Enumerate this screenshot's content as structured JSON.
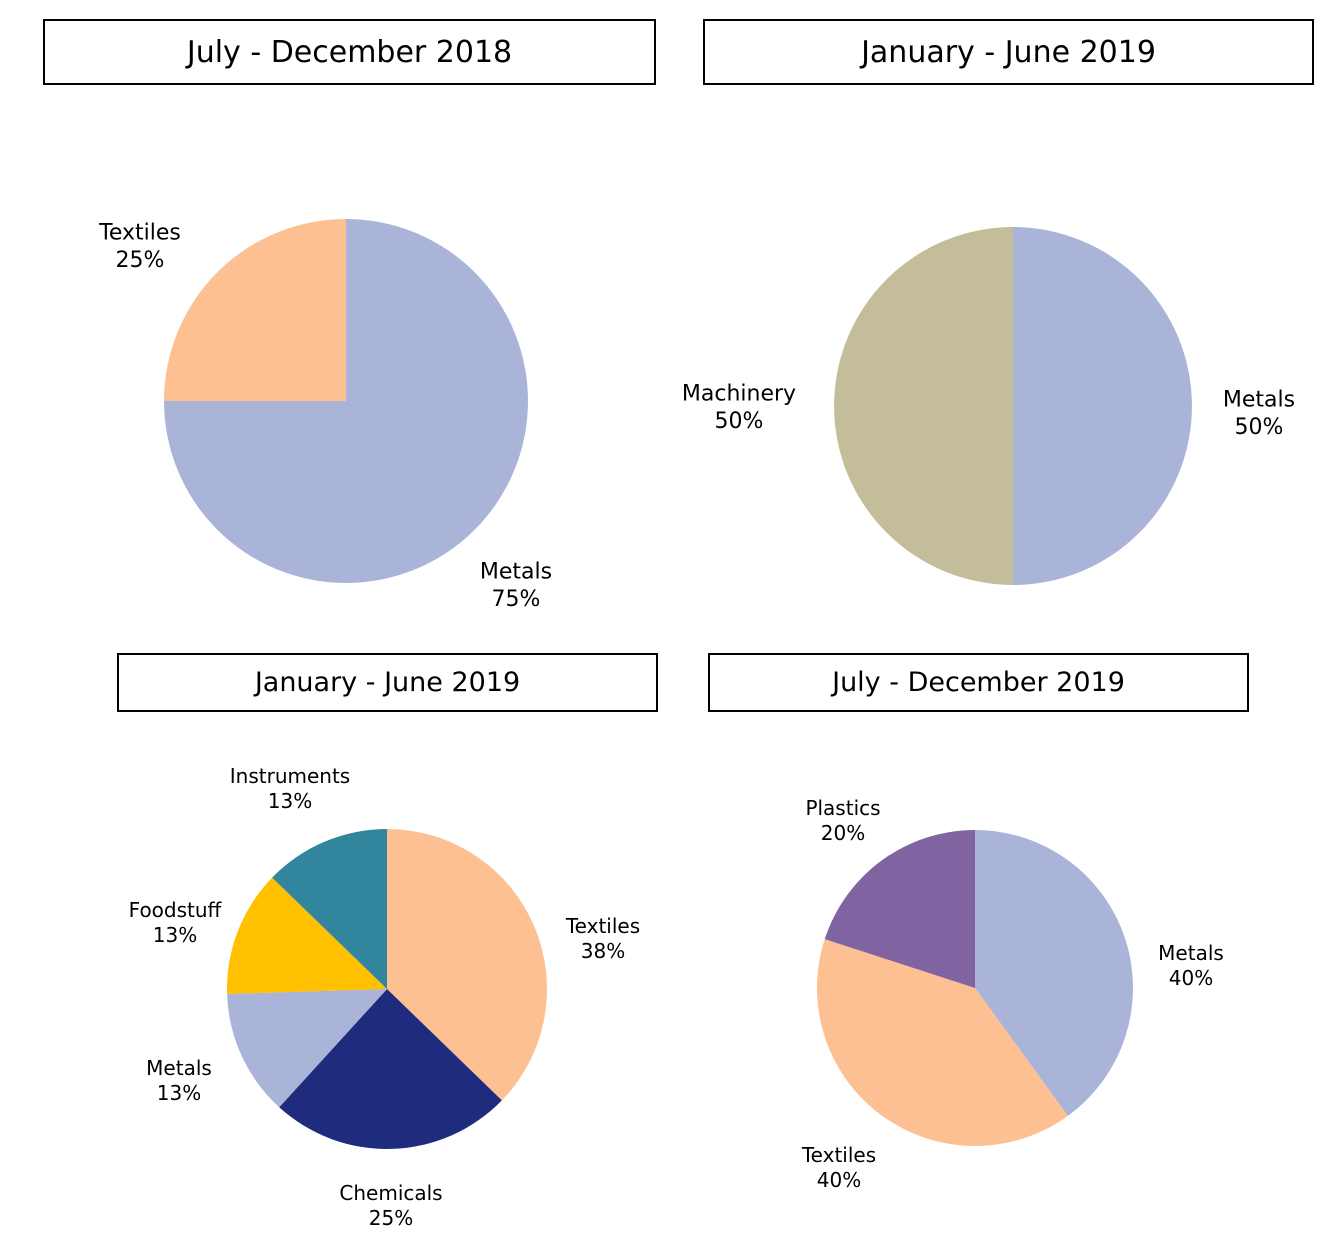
{
  "chart_data": [
    {
      "type": "pie",
      "title": "July - December 2018",
      "slices": [
        {
          "label": "Metals",
          "value": 75,
          "display": "75%",
          "color": "#a9b4d8"
        },
        {
          "label": "Textiles",
          "value": 25,
          "display": "25%",
          "color": "#fcc092"
        }
      ]
    },
    {
      "type": "pie",
      "title": "January - June 2019",
      "slices": [
        {
          "label": "Metals",
          "value": 50,
          "display": "50%",
          "color": "#a9b4d8"
        },
        {
          "label": "Machinery",
          "value": 50,
          "display": "50%",
          "color": "#c4bd99"
        }
      ]
    },
    {
      "type": "pie",
      "title": "January - June 2019",
      "slices": [
        {
          "label": "Textiles",
          "value": 38,
          "display": "38%",
          "color": "#fcc092"
        },
        {
          "label": "Chemicals",
          "value": 25,
          "display": "25%",
          "color": "#1f2b7c"
        },
        {
          "label": "Metals",
          "value": 13,
          "display": "13%",
          "color": "#a9b4d8"
        },
        {
          "label": "Foodstuff",
          "value": 13,
          "display": "13%",
          "color": "#ffc000"
        },
        {
          "label": "Instruments",
          "value": 13,
          "display": "13%",
          "color": "#31859c"
        }
      ]
    },
    {
      "type": "pie",
      "title": "July - December 2019",
      "slices": [
        {
          "label": "Metals",
          "value": 40,
          "display": "40%",
          "color": "#a9b4d8"
        },
        {
          "label": "Textiles",
          "value": 40,
          "display": "40%",
          "color": "#fcc092"
        },
        {
          "label": "Plastics",
          "value": 20,
          "display": "20%",
          "color": "#8064a2"
        }
      ]
    }
  ]
}
